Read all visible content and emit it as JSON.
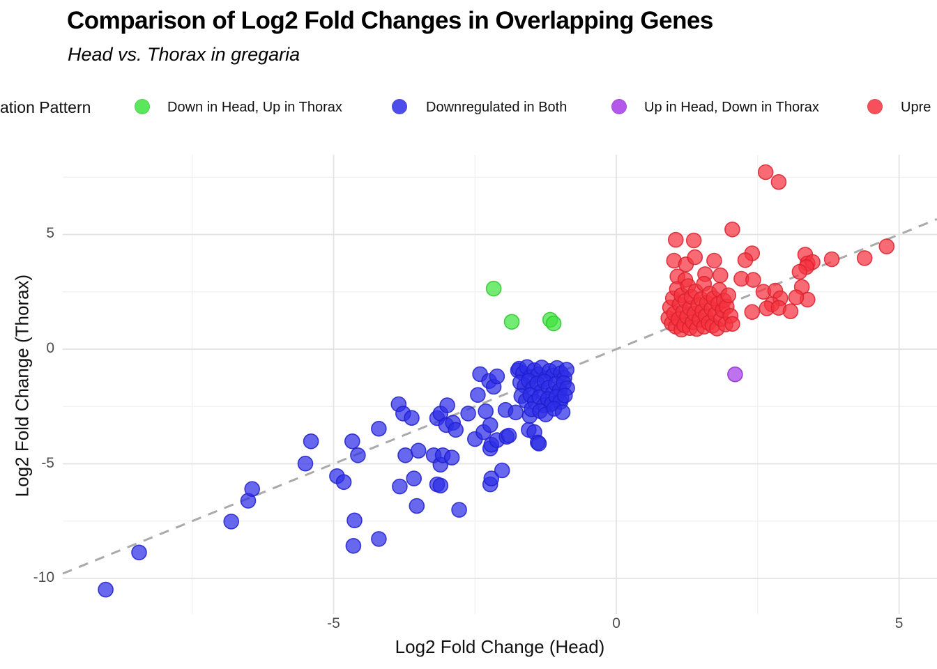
{
  "header": {
    "title": "Comparison of Log2 Fold Changes in Overlapping Genes",
    "subtitle": "Head vs. Thorax in gregaria"
  },
  "legend": {
    "title": "ation Pattern",
    "items": [
      {
        "label": "Down in Head, Up in Thorax",
        "color": "#3fe33f"
      },
      {
        "label": "Downregulated in Both",
        "color": "#2e2ee8"
      },
      {
        "label": "Up in Head, Down in Thorax",
        "color": "#a63be8"
      },
      {
        "label": "Upre",
        "color": "#f5323f"
      }
    ]
  },
  "chart_data": {
    "type": "scatter",
    "title": "Comparison of Log2 Fold Changes in Overlapping Genes",
    "subtitle": "Head vs. Thorax in gregaria",
    "xlabel": "Log2 Fold Change (Head)",
    "ylabel": "Log2 Fold Change (Thorax)",
    "xlim": [
      -9.79,
      5.67
    ],
    "ylim": [
      -11.55,
      8.48
    ],
    "grid": "on",
    "legend_position": "top",
    "x_ticks": [
      {
        "value": -5,
        "label": "-5"
      },
      {
        "value": 0,
        "label": "0"
      },
      {
        "value": 5,
        "label": "5"
      }
    ],
    "y_ticks": [
      {
        "value": 5,
        "label": "5"
      },
      {
        "value": 0,
        "label": "0"
      },
      {
        "value": -5,
        "label": "-5"
      },
      {
        "value": -10,
        "label": "-10"
      }
    ],
    "x_minor_ticks": [
      -7.5,
      -2.5,
      2.5
    ],
    "y_minor_ticks": [
      -7.5,
      -2.5,
      2.5,
      7.5
    ],
    "identity_line": {
      "shown": true,
      "from": [
        -9.79,
        -9.79
      ],
      "to": [
        5.67,
        5.67
      ],
      "color": "#aaaaaa",
      "style": "dashed"
    },
    "point_radius": 10.5,
    "colors": {
      "major_grid": "#e3e3e3",
      "minor_grid": "#f0f0f0",
      "tick_text": "#4d4d4d"
    },
    "series": [
      {
        "name": "Down in Head, Up in Thorax",
        "color": "#3fe33f",
        "stroke": "#2bc62b",
        "points": [
          [
            -2.17,
            2.64
          ],
          [
            -1.85,
            1.19
          ],
          [
            -1.17,
            1.28
          ],
          [
            -1.11,
            1.12
          ]
        ]
      },
      {
        "name": "Downregulated in Both",
        "color": "#2e2ee8",
        "stroke": "#1e1ecd",
        "points": [
          [
            -9.03,
            -10.49
          ],
          [
            -8.44,
            -8.87
          ],
          [
            -6.81,
            -7.52
          ],
          [
            -6.51,
            -6.61
          ],
          [
            -6.44,
            -6.1
          ],
          [
            -5.5,
            -4.99
          ],
          [
            -5.4,
            -4.02
          ],
          [
            -4.94,
            -5.54
          ],
          [
            -4.82,
            -5.8
          ],
          [
            -4.67,
            -4.02
          ],
          [
            -4.57,
            -4.63
          ],
          [
            -4.65,
            -8.58
          ],
          [
            -4.63,
            -7.47
          ],
          [
            -4.2,
            -8.28
          ],
          [
            -4.2,
            -3.47
          ],
          [
            -3.85,
            -2.4
          ],
          [
            -3.77,
            -2.81
          ],
          [
            -3.62,
            -3.0
          ],
          [
            -3.73,
            -4.63
          ],
          [
            -3.83,
            -5.99
          ],
          [
            -3.58,
            -5.64
          ],
          [
            -3.53,
            -6.84
          ],
          [
            -3.5,
            -4.43
          ],
          [
            -3.23,
            -4.63
          ],
          [
            -3.17,
            -3.01
          ],
          [
            -3.17,
            -5.9
          ],
          [
            -3.11,
            -5.04
          ],
          [
            -3.11,
            -5.95
          ],
          [
            -3.11,
            -2.81
          ],
          [
            -3.07,
            -4.63
          ],
          [
            -3.01,
            -3.31
          ],
          [
            -2.99,
            -2.45
          ],
          [
            -2.91,
            -4.73
          ],
          [
            -2.89,
            -3.21
          ],
          [
            -2.84,
            -3.52
          ],
          [
            -2.78,
            -7.01
          ],
          [
            -2.62,
            -2.81
          ],
          [
            -2.5,
            -3.92
          ],
          [
            -2.45,
            -2.0
          ],
          [
            -2.41,
            -1.09
          ],
          [
            -2.35,
            -3.62
          ],
          [
            -2.31,
            -2.71
          ],
          [
            -2.25,
            -1.39
          ],
          [
            -2.23,
            -3.31
          ],
          [
            -2.23,
            -4.33
          ],
          [
            -2.23,
            -5.9
          ],
          [
            -2.21,
            -4.17
          ],
          [
            -2.21,
            -5.64
          ],
          [
            -2.17,
            -1.64
          ],
          [
            -2.11,
            -1.19
          ],
          [
            -2.11,
            -3.97
          ],
          [
            -2.02,
            -5.29
          ],
          [
            -1.96,
            -2.65
          ],
          [
            -1.94,
            -3.82
          ],
          [
            -1.9,
            -3.77
          ],
          [
            -1.78,
            -2.76
          ],
          [
            -1.74,
            -0.93
          ],
          [
            -1.55,
            -3.52
          ],
          [
            -1.53,
            -2.91
          ],
          [
            -1.45,
            -3.62
          ],
          [
            -1.39,
            -4.07
          ],
          [
            -1.37,
            -4.12
          ],
          [
            -1.16,
            -2.4
          ],
          [
            -0.97,
            -2.15
          ],
          [
            -1.72,
            -0.85
          ],
          [
            -1.65,
            -1.05
          ],
          [
            -1.58,
            -0.78
          ],
          [
            -1.52,
            -1.22
          ],
          [
            -1.45,
            -0.92
          ],
          [
            -1.38,
            -1.1
          ],
          [
            -1.32,
            -0.8
          ],
          [
            -1.25,
            -1.28
          ],
          [
            -1.18,
            -0.95
          ],
          [
            -1.12,
            -1.15
          ],
          [
            -1.05,
            -0.82
          ],
          [
            -0.98,
            -1.05
          ],
          [
            -0.92,
            -1.25
          ],
          [
            -0.88,
            -0.9
          ],
          [
            -1.7,
            -1.45
          ],
          [
            -1.62,
            -1.6
          ],
          [
            -1.55,
            -1.38
          ],
          [
            -1.48,
            -1.72
          ],
          [
            -1.4,
            -1.5
          ],
          [
            -1.33,
            -1.85
          ],
          [
            -1.27,
            -1.42
          ],
          [
            -1.2,
            -1.68
          ],
          [
            -1.13,
            -1.95
          ],
          [
            -1.07,
            -1.52
          ],
          [
            -1.0,
            -1.78
          ],
          [
            -0.93,
            -1.48
          ],
          [
            -0.87,
            -1.7
          ],
          [
            -1.68,
            -2.05
          ],
          [
            -1.6,
            -2.25
          ],
          [
            -1.52,
            -2.0
          ],
          [
            -1.44,
            -2.3
          ],
          [
            -1.36,
            -2.1
          ],
          [
            -1.28,
            -2.45
          ],
          [
            -1.21,
            -2.18
          ],
          [
            -1.14,
            -2.38
          ],
          [
            -1.06,
            -2.08
          ],
          [
            -0.99,
            -2.3
          ],
          [
            -0.91,
            -2.02
          ],
          [
            -1.5,
            -2.62
          ],
          [
            -1.35,
            -2.7
          ],
          [
            -1.25,
            -2.85
          ],
          [
            -1.1,
            -2.6
          ],
          [
            -0.95,
            -2.75
          ]
        ]
      },
      {
        "name": "Up in Head, Down in Thorax",
        "color": "#a63be8",
        "stroke": "#8f2bd0",
        "points": [
          [
            2.1,
            -1.1
          ]
        ]
      },
      {
        "name": "Upregulated in Both",
        "color": "#f5323f",
        "stroke": "#d9202e",
        "points": [
          [
            2.64,
            7.72
          ],
          [
            2.87,
            7.29
          ],
          [
            2.05,
            5.22
          ],
          [
            1.05,
            4.77
          ],
          [
            1.37,
            4.74
          ],
          [
            2.4,
            4.18
          ],
          [
            2.28,
            3.88
          ],
          [
            1.02,
            3.86
          ],
          [
            1.23,
            3.7
          ],
          [
            1.39,
            4.01
          ],
          [
            1.73,
            3.86
          ],
          [
            3.34,
            4.12
          ],
          [
            3.38,
            3.74
          ],
          [
            3.47,
            3.8
          ],
          [
            3.81,
            3.92
          ],
          [
            4.39,
            3.97
          ],
          [
            4.78,
            4.48
          ],
          [
            3.36,
            3.58
          ],
          [
            3.24,
            3.37
          ],
          [
            2.6,
            2.5
          ],
          [
            2.81,
            2.55
          ],
          [
            2.9,
            2.22
          ],
          [
            3.28,
            2.71
          ],
          [
            3.38,
            2.16
          ],
          [
            3.18,
            2.26
          ],
          [
            2.75,
            1.95
          ],
          [
            2.66,
            1.78
          ],
          [
            2.4,
            1.62
          ],
          [
            2.87,
            1.8
          ],
          [
            3.08,
            1.65
          ],
          [
            2.21,
            3.07
          ],
          [
            2.42,
            3.02
          ],
          [
            1.57,
            3.27
          ],
          [
            1.84,
            3.22
          ],
          [
            1.08,
            3.17
          ],
          [
            1.22,
            3.02
          ],
          [
            0.92,
            1.35
          ],
          [
            0.95,
            1.82
          ],
          [
            0.98,
            1.12
          ],
          [
            1.0,
            2.22
          ],
          [
            1.02,
            1.55
          ],
          [
            1.05,
            0.98
          ],
          [
            1.07,
            2.62
          ],
          [
            1.1,
            1.3
          ],
          [
            1.12,
            1.95
          ],
          [
            1.15,
            0.85
          ],
          [
            1.15,
            2.35
          ],
          [
            1.18,
            1.62
          ],
          [
            1.2,
            1.05
          ],
          [
            1.22,
            2.1
          ],
          [
            1.25,
            1.42
          ],
          [
            1.27,
            2.75
          ],
          [
            1.3,
            0.92
          ],
          [
            1.3,
            1.78
          ],
          [
            1.33,
            2.28
          ],
          [
            1.35,
            1.18
          ],
          [
            1.38,
            1.55
          ],
          [
            1.4,
            2.52
          ],
          [
            1.42,
            0.88
          ],
          [
            1.45,
            1.92
          ],
          [
            1.47,
            1.28
          ],
          [
            1.5,
            2.18
          ],
          [
            1.52,
            1.65
          ],
          [
            1.55,
            0.98
          ],
          [
            1.55,
            2.85
          ],
          [
            1.58,
            1.45
          ],
          [
            1.6,
            2.02
          ],
          [
            1.63,
            1.15
          ],
          [
            1.65,
            2.42
          ],
          [
            1.68,
            1.75
          ],
          [
            1.7,
            1.02
          ],
          [
            1.72,
            2.22
          ],
          [
            1.75,
            1.52
          ],
          [
            1.78,
            0.9
          ],
          [
            1.8,
            1.98
          ],
          [
            1.82,
            2.58
          ],
          [
            1.85,
            1.32
          ],
          [
            1.88,
            1.7
          ],
          [
            1.9,
            2.12
          ],
          [
            1.93,
            1.08
          ],
          [
            1.95,
            1.85
          ],
          [
            1.98,
            2.35
          ],
          [
            2.02,
            1.45
          ],
          [
            2.05,
            1.1
          ]
        ]
      }
    ]
  }
}
